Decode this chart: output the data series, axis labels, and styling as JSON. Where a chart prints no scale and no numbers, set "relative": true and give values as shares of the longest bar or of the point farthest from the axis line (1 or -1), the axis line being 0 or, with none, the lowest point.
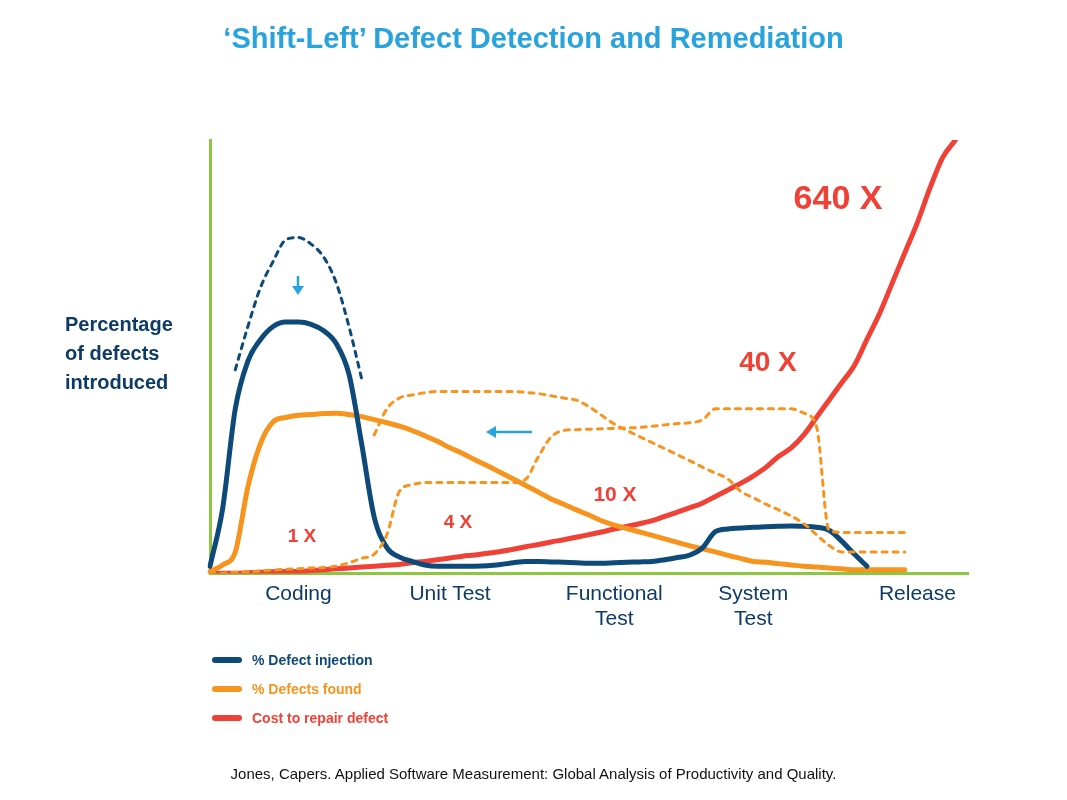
{
  "chart_data": {
    "type": "line",
    "title": "‘Shift-Left’ Defect Detection and Remediation",
    "ylabel": "Percentage of defects introduced",
    "relative": true,
    "marker": "none",
    "line_style": "solid",
    "grid": false,
    "tick_labels": "x",
    "legend": "bottom left",
    "categories": [
      null,
      null,
      null,
      null,
      null,
      null,
      null,
      "Coding",
      null,
      null,
      null,
      null,
      null,
      null,
      null,
      null,
      null,
      null,
      null,
      "Unit Test",
      null,
      null,
      null,
      null,
      null,
      null,
      null,
      null,
      null,
      null,
      null,
      null,
      "Functional Test",
      null,
      null,
      null,
      null,
      null,
      null,
      null,
      null,
      null,
      null,
      "System Test",
      null,
      null,
      null,
      null,
      null,
      null,
      null,
      null,
      null,
      null,
      null,
      null,
      "Release",
      null,
      null,
      null,
      null
    ],
    "series": [
      {
        "color": "#f7941d",
        "line_style": "dashed",
        "values": [
          0,
          0.001,
          0.003,
          0.004,
          0.006,
          0.008,
          0.01,
          0.011,
          0.013,
          0.014,
          0.017,
          0.025,
          0.035,
          0.045,
          0.09,
          0.19,
          0.205,
          0.21,
          0.21,
          0.21,
          0.21,
          0.21,
          0.21,
          0.21,
          0.21,
          0.218,
          0.27,
          0.315,
          0.33,
          0.332,
          0.333,
          0.334,
          0.335,
          0.336,
          0.337,
          0.34,
          0.343,
          0.346,
          0.348,
          0.355,
          0.38,
          0.38,
          0.38,
          0.38,
          0.38,
          0.38,
          0.38,
          0.37,
          0.34,
          0.1,
          0.095,
          0.095,
          0.095,
          0.095,
          0.095,
          0.095,
          null,
          null,
          null,
          null,
          null
        ]
      },
      {
        "color": "#f7941d",
        "line_style": "dashed",
        "values": [
          null,
          null,
          null,
          null,
          null,
          null,
          null,
          null,
          null,
          null,
          null,
          null,
          null,
          0.32,
          0.38,
          0.405,
          0.412,
          0.417,
          0.42,
          0.42,
          0.42,
          0.42,
          0.42,
          0.42,
          0.42,
          0.418,
          0.415,
          0.41,
          0.405,
          0.4,
          0.385,
          0.365,
          0.345,
          0.33,
          0.316,
          0.302,
          0.288,
          0.274,
          0.26,
          0.245,
          0.232,
          0.218,
          0.19,
          0.175,
          0.16,
          0.147,
          0.133,
          0.115,
          0.09,
          0.065,
          0.05,
          0.05,
          0.05,
          0.05,
          0.05,
          0.05,
          null,
          null,
          null,
          null,
          null
        ]
      },
      {
        "color": "#0d4a7a",
        "line_style": "dashed",
        "values": [
          null,
          null,
          0.47,
          0.57,
          0.66,
          0.72,
          0.77,
          0.775,
          0.76,
          0.73,
          0.67,
          0.57,
          0.45,
          null,
          null,
          null,
          null,
          null,
          null,
          null,
          null,
          null,
          null,
          null,
          null,
          null,
          null,
          null,
          null,
          null,
          null,
          null,
          null,
          null,
          null,
          null,
          null,
          null,
          null,
          null,
          null,
          null,
          null,
          null,
          null,
          null,
          null,
          null,
          null,
          null,
          null,
          null,
          null,
          null,
          null,
          null,
          null,
          null,
          null,
          null,
          null
        ]
      },
      {
        "name": "% Defect injection",
        "color": "#0d4a7a",
        "values": [
          0.017,
          0.15,
          0.38,
          0.49,
          0.54,
          0.57,
          0.58,
          0.58,
          0.575,
          0.56,
          0.53,
          0.46,
          0.3,
          0.13,
          0.06,
          0.038,
          0.028,
          0.02,
          0.017,
          0.017,
          0.017,
          0.017,
          0.018,
          0.021,
          0.025,
          0.028,
          0.028,
          0.027,
          0.026,
          0.025,
          0.024,
          0.024,
          0.025,
          0.026,
          0.027,
          0.028,
          0.032,
          0.037,
          0.043,
          0.06,
          0.097,
          0.103,
          0.105,
          0.107,
          0.108,
          0.109,
          0.11,
          0.109,
          0.107,
          0.1,
          0.075,
          0.045,
          0.017,
          null,
          null,
          null,
          null,
          null,
          null,
          null,
          null
        ]
      },
      {
        "name": "% Defects found",
        "color": "#f7941d",
        "values": [
          0.005,
          0.02,
          0.05,
          0.2,
          0.3,
          0.35,
          0.36,
          0.365,
          0.367,
          0.369,
          0.37,
          0.367,
          0.362,
          0.355,
          0.348,
          0.34,
          0.33,
          0.318,
          0.305,
          0.29,
          0.277,
          0.262,
          0.248,
          0.233,
          0.218,
          0.203,
          0.188,
          0.172,
          0.16,
          0.147,
          0.135,
          0.122,
          0.112,
          0.104,
          0.096,
          0.088,
          0.08,
          0.072,
          0.064,
          0.057,
          0.05,
          0.042,
          0.035,
          0.028,
          0.026,
          0.023,
          0.02,
          0.017,
          0.015,
          0.013,
          0.011,
          0.009,
          0.009,
          0.009,
          0.009,
          0.009,
          null,
          null,
          null,
          null,
          null
        ]
      },
      {
        "name": "Cost to repair defect",
        "color": "#ef4136",
        "values": [
          0,
          0.001,
          0.001,
          0.002,
          0.003,
          0.004,
          0.005,
          0.005,
          0.007,
          0.009,
          0.011,
          0.013,
          0.015,
          0.017,
          0.019,
          0.021,
          0.025,
          0.028,
          0.032,
          0.036,
          0.04,
          0.043,
          0.047,
          0.051,
          0.056,
          0.062,
          0.067,
          0.073,
          0.078,
          0.084,
          0.09,
          0.096,
          0.103,
          0.109,
          0.115,
          0.122,
          0.132,
          0.142,
          0.152,
          0.163,
          0.178,
          0.193,
          0.208,
          0.225,
          0.245,
          0.27,
          0.29,
          0.32,
          0.36,
          0.4,
          0.44,
          0.48,
          0.54,
          0.6,
          0.67,
          0.74,
          0.81,
          0.89,
          0.96,
          1,
          null
        ]
      }
    ],
    "annotations": [
      "640 X",
      "40 X",
      "10 X",
      "4 X",
      "1 X",
      "Jones, Capers. Applied Software Measurement: Global Analysis of Productivity and Quality."
    ]
  }
}
